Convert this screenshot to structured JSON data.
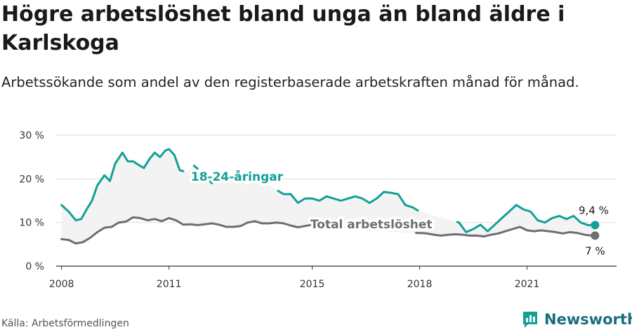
{
  "title": "Högre arbetslöshet bland unga än bland äldre i Karlskoga",
  "subtitle": "Arbetssökande som andel av den registerbaserade arbetskraften månad för månad.",
  "source": "Källa: Arbetsförmedlingen",
  "brand": "Newsworthy",
  "colors": {
    "youth": "#12a097",
    "total": "#6e6e72",
    "band": "#f3f3f3",
    "grid": "#dddddd",
    "brand": "#1a6e7c"
  },
  "chart_data": {
    "type": "line",
    "x_unit": "year (decimal)",
    "xlim": [
      2007.85,
      2023.5
    ],
    "ylim": [
      0,
      30
    ],
    "x_ticks": [
      2008,
      2011,
      2015,
      2018,
      2021
    ],
    "y_ticks": [
      {
        "value": 0,
        "label": "0 %"
      },
      {
        "value": 10,
        "label": "10 %"
      },
      {
        "value": 20,
        "label": "20 %"
      },
      {
        "value": 30,
        "label": "30 %"
      }
    ],
    "series": [
      {
        "name": "18-24-åringar",
        "color": "#12a097",
        "end_label": "9,4 %",
        "x": [
          2008.0,
          2008.2,
          2008.4,
          2008.55,
          2008.7,
          2008.85,
          2009.0,
          2009.2,
          2009.35,
          2009.5,
          2009.7,
          2009.85,
          2010.0,
          2010.15,
          2010.3,
          2010.45,
          2010.6,
          2010.75,
          2010.9,
          2011.0,
          2011.15,
          2011.3,
          2011.5,
          2011.7,
          2011.85,
          2012.0,
          2012.2,
          2012.4,
          2012.6,
          2012.8,
          2013.0,
          2013.2,
          2013.4,
          2013.6,
          2013.8,
          2014.0,
          2014.2,
          2014.4,
          2014.6,
          2014.8,
          2015.0,
          2015.2,
          2015.4,
          2015.6,
          2015.8,
          2016.0,
          2016.2,
          2016.4,
          2016.6,
          2016.8,
          2017.0,
          2017.2,
          2017.4,
          2017.6,
          2017.8,
          2018.0,
          2019.1,
          2019.3,
          2019.5,
          2019.7,
          2019.9,
          2020.1,
          2020.3,
          2020.5,
          2020.7,
          2020.9,
          2021.1,
          2021.3,
          2021.5,
          2021.7,
          2021.9,
          2022.1,
          2022.3,
          2022.5,
          2022.7,
          2022.9
        ],
        "y": [
          14.0,
          12.5,
          10.5,
          10.8,
          13.0,
          15.0,
          18.5,
          20.8,
          19.5,
          23.5,
          26.0,
          24.0,
          24.0,
          23.2,
          22.5,
          24.5,
          26.0,
          25.0,
          26.5,
          26.8,
          25.5,
          22.0,
          21.5,
          23.0,
          22.0,
          20.5,
          19.0,
          20.5,
          19.5,
          20.0,
          19.5,
          18.5,
          20.0,
          19.0,
          18.5,
          17.5,
          16.5,
          16.5,
          14.5,
          15.5,
          15.5,
          15.0,
          16.0,
          15.5,
          15.0,
          15.5,
          16.0,
          15.5,
          14.5,
          15.5,
          17.0,
          16.8,
          16.5,
          14.0,
          13.5,
          12.5,
          10.0,
          7.8,
          8.5,
          9.5,
          8.0,
          9.5,
          11.0,
          12.5,
          14.0,
          13.0,
          12.5,
          10.5,
          10.0,
          11.0,
          11.5,
          10.8,
          11.5,
          10.0,
          9.4,
          9.4
        ],
        "visible_ranges": [
          [
            2008.0,
            2011.4
          ],
          [
            2011.7,
            2011.8
          ],
          [
            2012.15,
            2012.45
          ],
          [
            2013.4,
            2013.6
          ],
          [
            2014.05,
            2017.95
          ],
          [
            2019.05,
            2022.9
          ]
        ]
      },
      {
        "name": "Total arbetslöshet",
        "color": "#6e6e72",
        "end_label": "7 %",
        "x": [
          2008.0,
          2008.2,
          2008.4,
          2008.6,
          2008.8,
          2009.0,
          2009.2,
          2009.4,
          2009.6,
          2009.8,
          2010.0,
          2010.2,
          2010.4,
          2010.6,
          2010.8,
          2011.0,
          2011.2,
          2011.4,
          2011.6,
          2011.8,
          2012.0,
          2012.2,
          2012.4,
          2012.6,
          2012.8,
          2013.0,
          2013.2,
          2013.4,
          2013.6,
          2013.8,
          2014.0,
          2014.2,
          2014.4,
          2014.6,
          2014.8,
          2015.0,
          2015.2,
          2015.4,
          2015.6,
          2015.8,
          2016.0,
          2016.2,
          2016.4,
          2016.6,
          2016.8,
          2017.0,
          2017.2,
          2017.4,
          2017.6,
          2017.8,
          2018.0,
          2018.2,
          2018.4,
          2018.6,
          2018.8,
          2019.0,
          2019.2,
          2019.4,
          2019.6,
          2019.8,
          2020.0,
          2020.2,
          2020.4,
          2020.6,
          2020.8,
          2021.0,
          2021.2,
          2021.4,
          2021.6,
          2021.8,
          2022.0,
          2022.2,
          2022.4,
          2022.6,
          2022.8,
          2022.9
        ],
        "y": [
          6.2,
          6.0,
          5.2,
          5.5,
          6.5,
          7.8,
          8.8,
          9.0,
          10.0,
          10.2,
          11.2,
          11.0,
          10.5,
          10.8,
          10.3,
          11.0,
          10.5,
          9.5,
          9.6,
          9.4,
          9.6,
          9.8,
          9.5,
          9.0,
          9.0,
          9.2,
          10.0,
          10.3,
          9.8,
          9.8,
          10.0,
          9.8,
          9.3,
          8.9,
          9.2,
          9.5,
          9.6,
          9.5,
          9.2,
          8.8,
          8.5,
          8.3,
          8.2,
          8.1,
          8.0,
          8.0,
          7.9,
          7.8,
          7.7,
          7.6,
          7.6,
          7.5,
          7.2,
          7.0,
          7.2,
          7.3,
          7.2,
          7.0,
          7.0,
          6.8,
          7.2,
          7.5,
          8.0,
          8.5,
          9.0,
          8.2,
          8.0,
          8.2,
          8.0,
          7.8,
          7.5,
          7.8,
          7.6,
          7.2,
          7.0,
          7.0
        ],
        "visible_ranges": [
          [
            2008.0,
            2015.2
          ],
          [
            2017.9,
            2022.9
          ]
        ]
      }
    ],
    "annotations": [
      {
        "text": "18-24-åringar",
        "series": "18-24-åringar",
        "x": 2012.9,
        "y": 20.5
      },
      {
        "text": "Total arbetslöshet",
        "series": "Total arbetslöshet",
        "x": 2016.65,
        "y": 9.6
      }
    ]
  }
}
